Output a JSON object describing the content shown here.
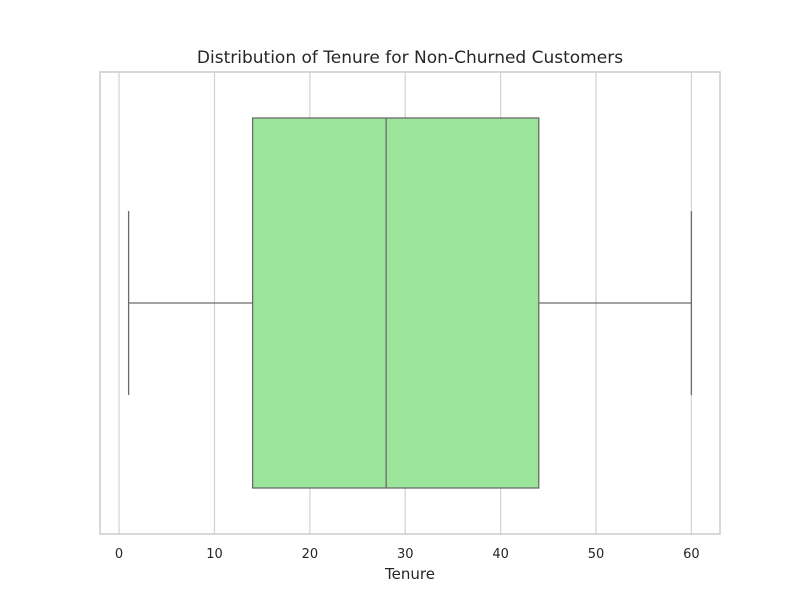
{
  "chart_data": {
    "type": "box",
    "title": "Distribution of Tenure for Non-Churned Customers",
    "xlabel": "Tenure",
    "ylabel": "",
    "orientation": "horizontal",
    "xlim": [
      -2,
      63
    ],
    "xticks": [
      0,
      10,
      20,
      30,
      40,
      50,
      60
    ],
    "grid": true,
    "box": {
      "whisker_low": 1,
      "q1": 14,
      "median": 28,
      "q3": 44,
      "whisker_high": 60
    },
    "colors": {
      "box_fill": "#9be59b",
      "line": "#6b6b6b",
      "grid": "#d3d3d3",
      "frame": "#cccccc"
    }
  }
}
